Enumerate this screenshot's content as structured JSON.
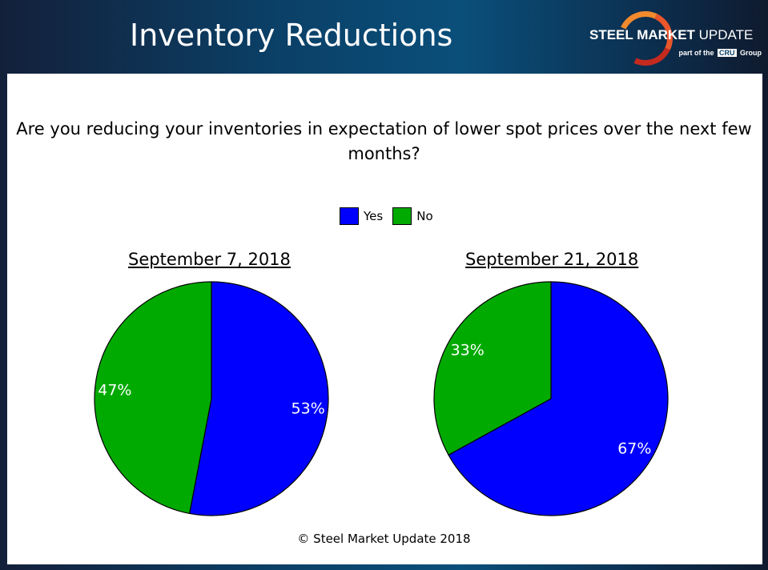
{
  "header": {
    "title": "Inventory Reductions",
    "logo_text": "STEEL MARKET UPDATE",
    "logo_sub": "part of the CRU Group"
  },
  "footer": {
    "copyright": "© Steel Market Update 2018"
  },
  "chart_data": {
    "type": "pie",
    "title": "Are you reducing your inventories in expectation of lower spot prices over the next few months?",
    "legend": {
      "position": "top",
      "entries": [
        {
          "name": "Yes",
          "color": "#0000ff"
        },
        {
          "name": "No",
          "color": "#00aa00"
        }
      ]
    },
    "charts": [
      {
        "subtitle": "September 7, 2018",
        "slices": [
          {
            "name": "Yes",
            "value": 53,
            "label": "53%"
          },
          {
            "name": "No",
            "value": 47,
            "label": "47%"
          }
        ]
      },
      {
        "subtitle": "September 21, 2018",
        "slices": [
          {
            "name": "Yes",
            "value": 67,
            "label": "67%"
          },
          {
            "name": "No",
            "value": 33,
            "label": "33%"
          }
        ]
      }
    ]
  }
}
